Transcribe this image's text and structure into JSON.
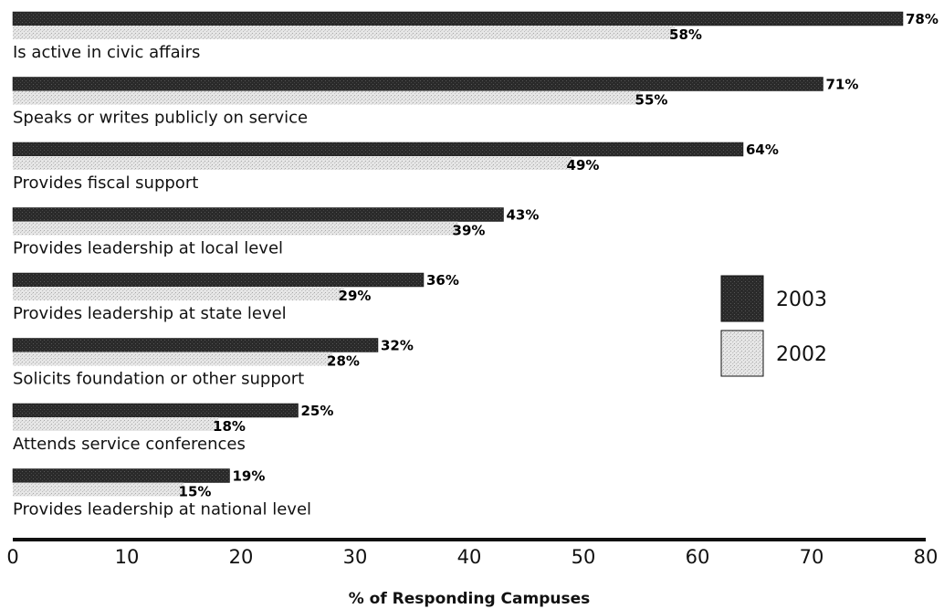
{
  "chart_data": {
    "type": "bar",
    "orientation": "horizontal",
    "categories": [
      "Is active in civic affairs",
      "Speaks or writes publicly on service",
      "Provides fiscal support",
      "Provides leadership at local level",
      "Provides leadership at state level",
      "Solicits foundation or other support",
      "Attends service conferences",
      "Provides leadership at national level"
    ],
    "series": [
      {
        "name": "2003",
        "values": [
          78,
          71,
          64,
          43,
          36,
          32,
          25,
          19
        ],
        "color": "#262626"
      },
      {
        "name": "2002",
        "values": [
          58,
          55,
          49,
          39,
          29,
          28,
          18,
          15
        ],
        "color": "#d9d9d9"
      }
    ],
    "value_suffix": "%",
    "xlabel": "% of Responding Campuses",
    "xlim": [
      0,
      80
    ],
    "xticks": [
      0,
      10,
      20,
      30,
      40,
      50,
      60,
      70,
      80
    ],
    "grid": false,
    "legend_position": "right"
  }
}
